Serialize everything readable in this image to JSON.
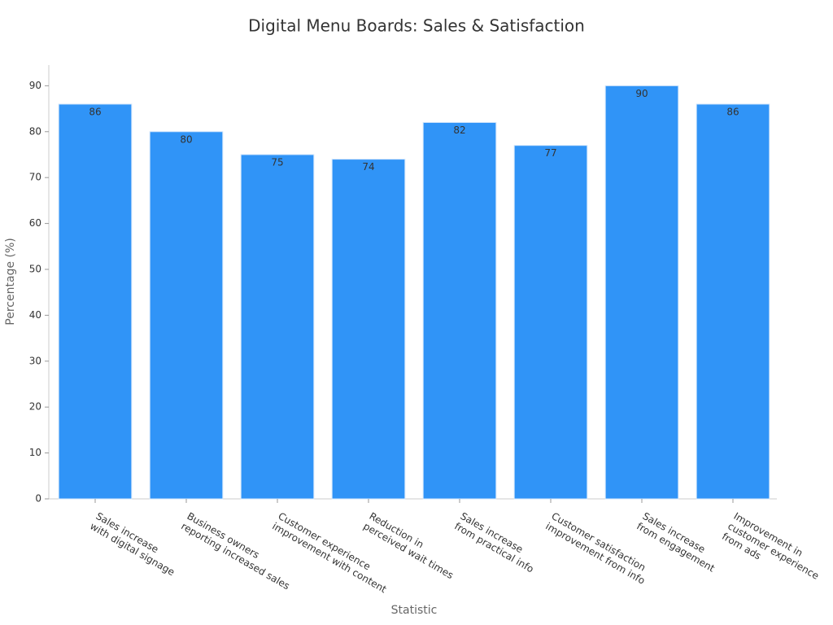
{
  "chart_data": {
    "type": "bar",
    "title": "Digital Menu Boards: Sales & Satisfaction",
    "x_label": "Statistic",
    "y_label": "Percentage (%)",
    "categories": [
      "Sales increase\nwith digital signage",
      "Business owners\nreporting increased sales",
      "Customer experience\nimprovement with content",
      "Reduction in\nperceived wait times",
      "Sales increase\nfrom practical info",
      "Customer satisfaction\nimprovement from info",
      "Sales increase\nfrom engagement",
      "Improvement in\ncustomer experience\nfrom ads"
    ],
    "values": [
      86,
      80,
      75,
      74,
      82,
      77,
      90,
      86
    ],
    "color": "#3094f7",
    "ylim": [
      0,
      94.5
    ],
    "yticks": [
      0,
      10,
      20,
      30,
      40,
      50,
      60,
      70,
      80,
      90
    ],
    "grid": false
  }
}
